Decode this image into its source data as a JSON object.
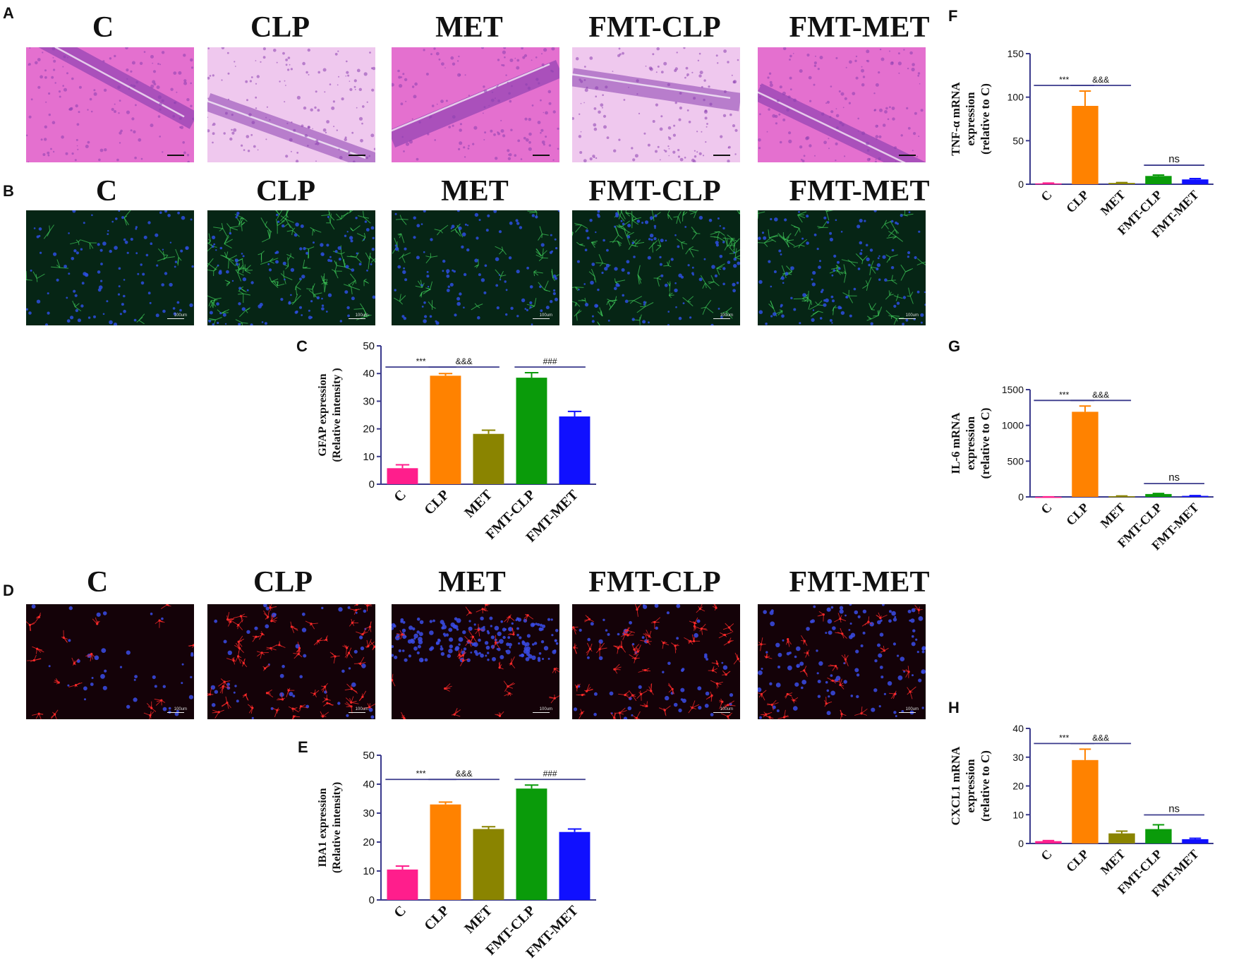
{
  "panel_letters": {
    "A": "A",
    "B": "B",
    "C": "C",
    "D": "D",
    "E": "E",
    "F": "F",
    "G": "G",
    "H": "H"
  },
  "groups": [
    "C",
    "CLP",
    "MET",
    "FMT-CLP",
    "FMT-MET"
  ],
  "micrographs": {
    "A": {
      "stain": "H&E",
      "colors": {
        "bg": "#e470cf",
        "bg_light": "#efc8ee",
        "cells": "#8a3fb0"
      }
    },
    "B": {
      "stain": "GFAP immunofluorescence",
      "colors": {
        "bg": "#062515",
        "signal": "#3fce5a",
        "nuclei": "#2d4fe0"
      }
    },
    "D": {
      "stain": "IBA1 immunofluorescence",
      "colors": {
        "bg": "#140208",
        "signal": "#ff2a2a",
        "nuclei": "#3a4ce8"
      }
    },
    "scale_label": "100um"
  },
  "bar_colors": [
    "#ff1e8c",
    "#ff8200",
    "#8a8400",
    "#0a9b0a",
    "#1010ff"
  ],
  "chart_data": [
    {
      "panel": "C",
      "type": "bar",
      "categories": [
        "C",
        "CLP",
        "MET",
        "FMT-CLP",
        "FMT-MET"
      ],
      "values": [
        5.8,
        39.2,
        18.2,
        38.5,
        24.5
      ],
      "errors": [
        1.2,
        0.8,
        1.3,
        1.8,
        1.8
      ],
      "ylabel": [
        "GFAP expression",
        "(Relative intensity )"
      ],
      "ylim": [
        0,
        50
      ],
      "yticks": [
        0,
        10,
        20,
        30,
        40,
        50
      ],
      "annotations": [
        {
          "text": "***",
          "from": 0,
          "to": 1
        },
        {
          "text": "&&&",
          "from": 1,
          "to": 2
        },
        {
          "text": "###",
          "from": 3,
          "to": 4
        }
      ]
    },
    {
      "panel": "E",
      "type": "bar",
      "categories": [
        "C",
        "CLP",
        "MET",
        "FMT-CLP",
        "FMT-MET"
      ],
      "values": [
        10.5,
        33.0,
        24.5,
        38.5,
        23.5
      ],
      "errors": [
        1.2,
        0.8,
        0.8,
        1.2,
        1.0
      ],
      "ylabel": [
        "IBA1 expression",
        "(Relative intensity)"
      ],
      "ylim": [
        0,
        50
      ],
      "yticks": [
        0,
        10,
        20,
        30,
        40,
        50
      ],
      "annotations": [
        {
          "text": "***",
          "from": 0,
          "to": 1
        },
        {
          "text": "&&&",
          "from": 1,
          "to": 2
        },
        {
          "text": "###",
          "from": 3,
          "to": 4
        }
      ]
    },
    {
      "panel": "F",
      "type": "bar",
      "categories": [
        "C",
        "CLP",
        "MET",
        "FMT-CLP",
        "FMT-MET"
      ],
      "values": [
        1,
        90,
        1.5,
        9.5,
        5.5
      ],
      "errors": [
        0.3,
        17,
        0.4,
        1.0,
        1.0
      ],
      "ylabel": [
        "TNF-α  mRNA",
        "expression",
        "(relative to C)"
      ],
      "ylim": [
        0,
        150
      ],
      "yticks": [
        0,
        50,
        100,
        150
      ],
      "annotations": [
        {
          "text": "***",
          "from": 0,
          "to": 1
        },
        {
          "text": "&&&",
          "from": 1,
          "to": 2
        },
        {
          "text": "ns",
          "from": 3,
          "to": 4
        }
      ]
    },
    {
      "panel": "G",
      "type": "bar",
      "categories": [
        "C",
        "CLP",
        "MET",
        "FMT-CLP",
        "FMT-MET"
      ],
      "values": [
        1,
        1190,
        10,
        40,
        15
      ],
      "errors": [
        0.5,
        80,
        3,
        8,
        4
      ],
      "ylabel": [
        "IL-6 mRNA",
        "expression",
        "(relative to C)"
      ],
      "ylim": [
        0,
        1500
      ],
      "yticks": [
        0,
        500,
        1000,
        1500
      ],
      "annotations": [
        {
          "text": "***",
          "from": 0,
          "to": 1
        },
        {
          "text": "&&&",
          "from": 1,
          "to": 2
        },
        {
          "text": "ns",
          "from": 3,
          "to": 4
        }
      ]
    },
    {
      "panel": "H",
      "type": "bar",
      "categories": [
        "C",
        "CLP",
        "MET",
        "FMT-CLP",
        "FMT-MET"
      ],
      "values": [
        0.8,
        29,
        3.5,
        5,
        1.5
      ],
      "errors": [
        0.2,
        3.8,
        0.8,
        1.5,
        0.3
      ],
      "ylabel": [
        "CXCL1 mRNA",
        "expression",
        "(relative to C)"
      ],
      "ylim": [
        0,
        40
      ],
      "yticks": [
        0,
        10,
        20,
        30,
        40
      ],
      "annotations": [
        {
          "text": "***",
          "from": 0,
          "to": 1
        },
        {
          "text": "&&&",
          "from": 1,
          "to": 2
        },
        {
          "text": "ns",
          "from": 3,
          "to": 4
        }
      ]
    }
  ]
}
